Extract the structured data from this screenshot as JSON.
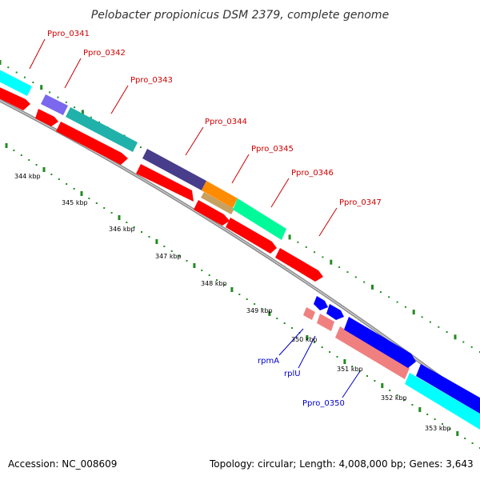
{
  "title": "Pelobacter propionicus DSM 2379, complete genome",
  "footer": {
    "accession": "Accession: NC_008609",
    "topology": "Topology: circular; Length: 4,008,000 bp; Genes: 3,643"
  },
  "colors": {
    "label_top": "#cc0000",
    "label_bottom": "#0000cc",
    "backbone": "#999999",
    "tick": "#228b22",
    "cds_forward": "#ff0000",
    "cds_reverse": "#f08080"
  },
  "ticks": [
    {
      "label": "344 kbp"
    },
    {
      "label": "345 kbp"
    },
    {
      "label": "346 kbp"
    },
    {
      "label": "347 kbp"
    },
    {
      "label": "348 kbp"
    },
    {
      "label": "349 kbp"
    },
    {
      "label": "350 kbp"
    },
    {
      "label": "351 kbp"
    },
    {
      "label": "352 kbp"
    },
    {
      "label": "353 kbp"
    }
  ],
  "genes_top": [
    {
      "name": "Ppro_0341",
      "feature_color": "#00ffff"
    },
    {
      "name": "Ppro_0342",
      "feature_color": "#7b68ee"
    },
    {
      "name": "Ppro_0343",
      "feature_color": "#20b2aa"
    },
    {
      "name": "Ppro_0344",
      "feature_color": "#483d8b"
    },
    {
      "name": "Ppro_0345",
      "feature_color": "#ff8c00"
    },
    {
      "name": "Ppro_0346",
      "feature_color": "#00fa9a"
    },
    {
      "name": "Ppro_0347",
      "feature_color": "#ff0000"
    }
  ],
  "genes_bottom": [
    {
      "name": "rpmA",
      "feature_color": "#0000ff"
    },
    {
      "name": "rplU",
      "feature_color": "#0000ff"
    },
    {
      "name": "Ppro_0350",
      "feature_color": "#0000ff"
    }
  ]
}
